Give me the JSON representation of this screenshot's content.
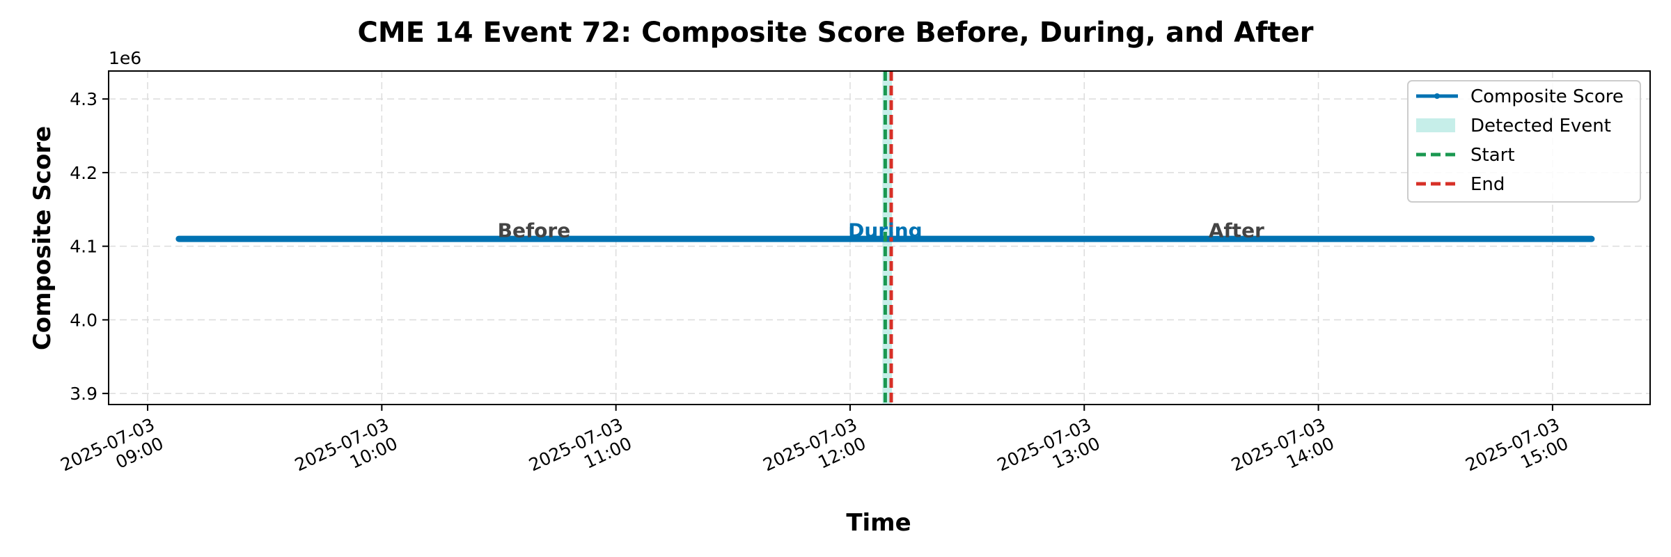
{
  "chart_data": {
    "type": "line",
    "title": "CME 14 Event 72: Composite Score Before, During, and After",
    "xlabel": "Time",
    "ylabel": "Composite Score",
    "y_offset_label": "1e6",
    "x_range": [
      "2025-07-03 08:50",
      "2025-07-03 15:25"
    ],
    "ylim": [
      3.885,
      4.338
    ],
    "y_scale_multiplier": 1000000,
    "x_ticks": [
      {
        "value": "2025-07-03 09:00",
        "line1": "2025-07-03",
        "line2": "09:00"
      },
      {
        "value": "2025-07-03 10:00",
        "line1": "2025-07-03",
        "line2": "10:00"
      },
      {
        "value": "2025-07-03 11:00",
        "line1": "2025-07-03",
        "line2": "11:00"
      },
      {
        "value": "2025-07-03 12:00",
        "line1": "2025-07-03",
        "line2": "12:00"
      },
      {
        "value": "2025-07-03 13:00",
        "line1": "2025-07-03",
        "line2": "13:00"
      },
      {
        "value": "2025-07-03 14:00",
        "line1": "2025-07-03",
        "line2": "14:00"
      },
      {
        "value": "2025-07-03 15:00",
        "line1": "2025-07-03",
        "line2": "15:00"
      }
    ],
    "y_ticks": [
      {
        "value": 3.9,
        "label": "3.9"
      },
      {
        "value": 4.0,
        "label": "4.0"
      },
      {
        "value": 4.1,
        "label": "4.1"
      },
      {
        "value": 4.2,
        "label": "4.2"
      },
      {
        "value": 4.3,
        "label": "4.3"
      }
    ],
    "series": [
      {
        "name": "Composite Score",
        "color": "#0072b2",
        "x": [
          "2025-07-03 09:08",
          "2025-07-03 15:10"
        ],
        "y": [
          4.11,
          4.11
        ]
      }
    ],
    "event": {
      "name": "Detected Event",
      "fill_color": "#c6eee9",
      "start": "2025-07-03 12:09",
      "end": "2025-07-03 12:10",
      "start_label": "Start",
      "end_label": "End",
      "start_color": "#1a9850",
      "end_color": "#d73027"
    },
    "regions": [
      {
        "label": "Before",
        "x": "2025-07-03 10:39",
        "y": 4.116,
        "color": "#444444"
      },
      {
        "label": "During",
        "x": "2025-07-03 12:09",
        "y": 4.116,
        "color": "#0072b2"
      },
      {
        "label": "After",
        "x": "2025-07-03 13:39",
        "y": 4.116,
        "color": "#444444"
      }
    ],
    "legend": {
      "position": "top-right",
      "entries": [
        "Composite Score",
        "Detected Event",
        "Start",
        "End"
      ]
    },
    "grid": true
  }
}
